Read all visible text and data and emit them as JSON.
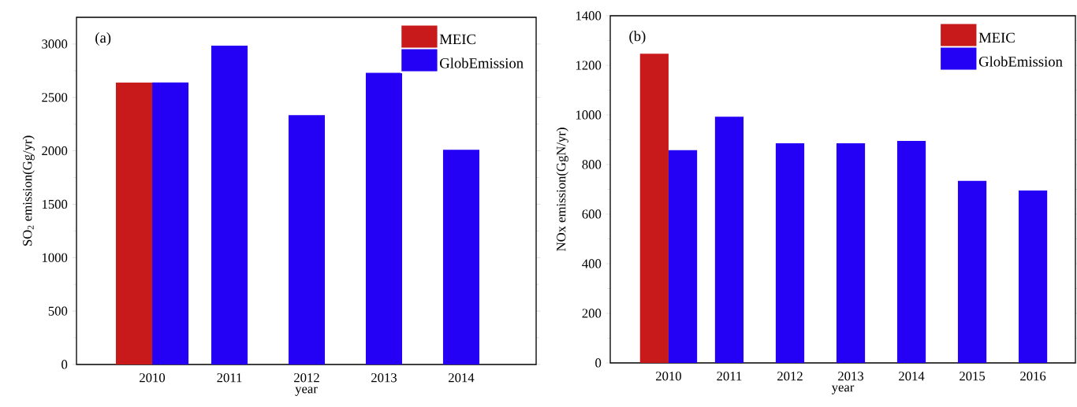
{
  "chart_data": [
    {
      "type": "bar",
      "categories": [
        "2010",
        "2011",
        "2012",
        "2013",
        "2014"
      ],
      "series": [
        {
          "name": "MEIC",
          "color": "#c8191b",
          "values": [
            2640,
            null,
            null,
            null,
            null
          ]
        },
        {
          "name": "GlobEmission",
          "color": "#2400f5",
          "values": [
            2640,
            2985,
            2335,
            2730,
            2010
          ]
        }
      ],
      "ylim": [
        0,
        3250
      ],
      "yticks": [
        0,
        500,
        1000,
        1500,
        2000,
        2500,
        3000
      ],
      "xlabel": "year",
      "ylabel": "SO$_{2}$ emission(Gg/yr)",
      "annotations": [
        "(a)"
      ],
      "legend": "top right"
    },
    {
      "type": "bar",
      "categories": [
        "2010",
        "2011",
        "2012",
        "2013",
        "2014",
        "2015",
        "2016"
      ],
      "series": [
        {
          "name": "MEIC",
          "color": "#c8191b",
          "values": [
            1247,
            null,
            null,
            null,
            null,
            null,
            null
          ]
        },
        {
          "name": "GlobEmission",
          "color": "#2400f5",
          "values": [
            858,
            993,
            886,
            886,
            895,
            734,
            695
          ]
        }
      ],
      "ylim": [
        0,
        1400
      ],
      "yticks": [
        0,
        200,
        400,
        600,
        800,
        1000,
        1200,
        1400
      ],
      "xlabel": "year",
      "ylabel": "NOx emission(GgN/yr)",
      "annotations": [
        "(b)"
      ],
      "legend": "top right"
    }
  ]
}
